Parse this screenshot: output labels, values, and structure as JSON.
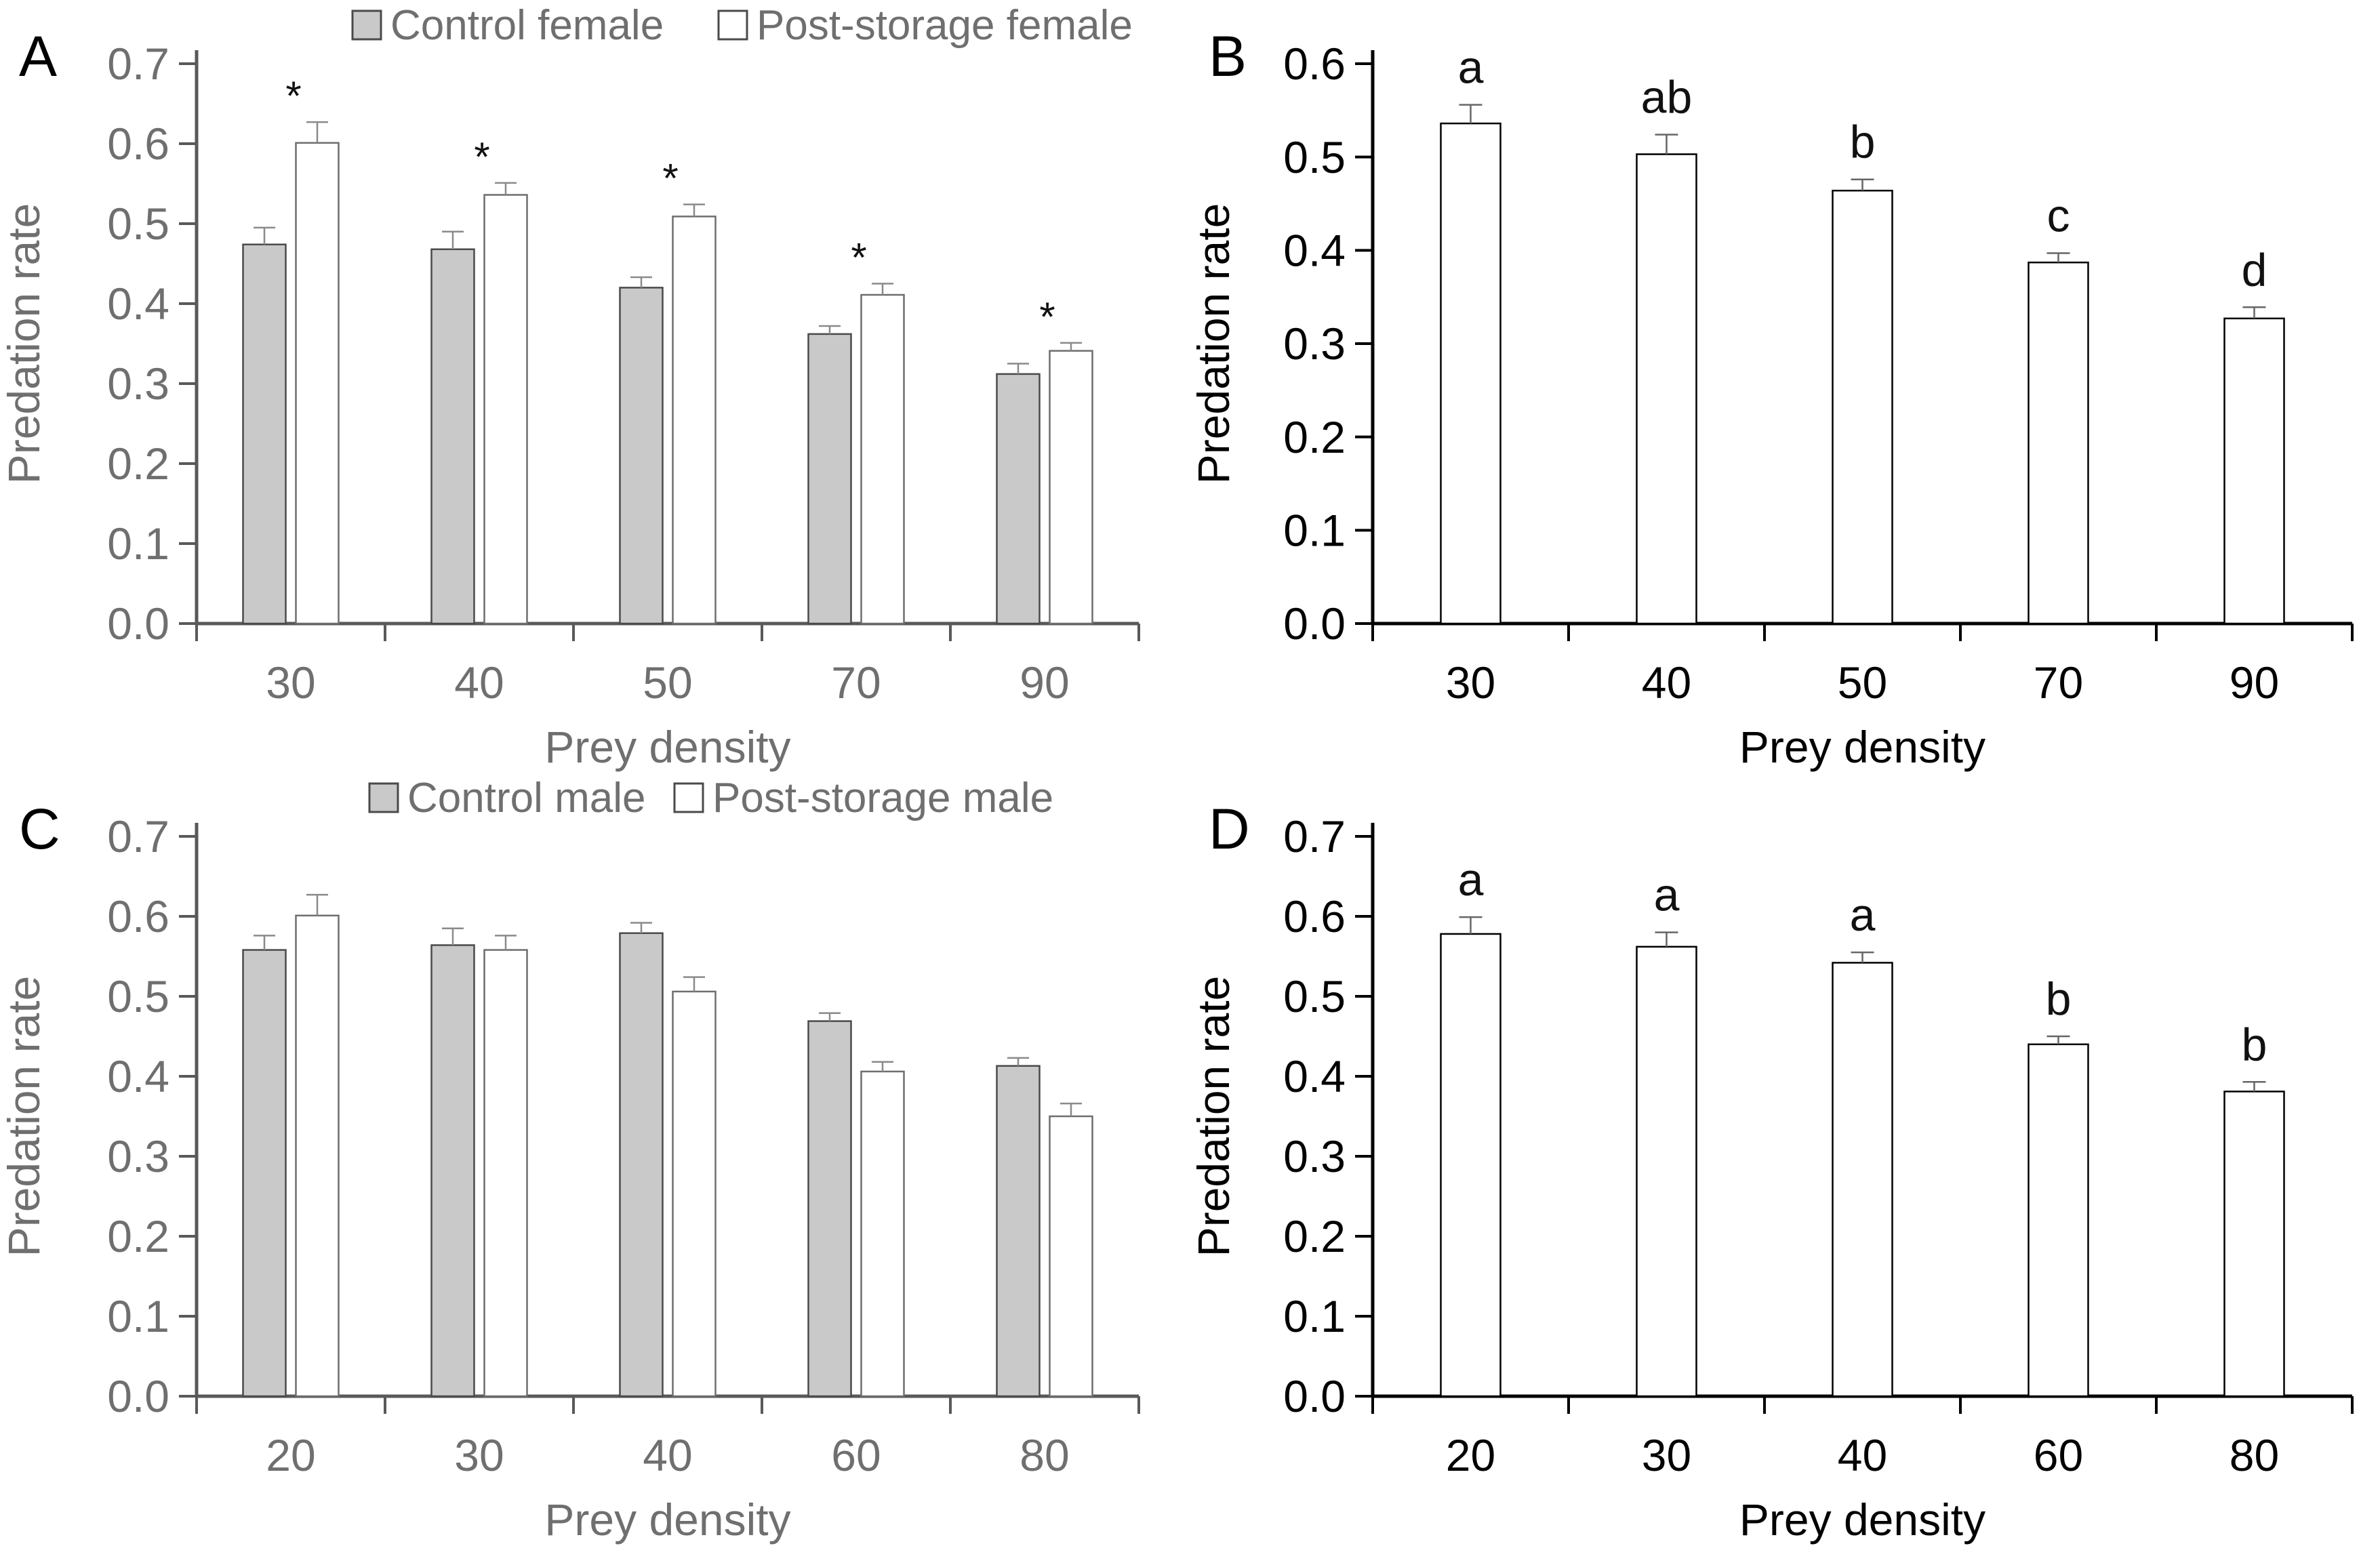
{
  "figure": {
    "background": "#ffffff",
    "xlabel": "Prey density",
    "ylabel": "Predation rate"
  },
  "colors": {
    "gray_bar_fill": "#c9c9c9",
    "gray_bar_stroke": "#4a4a4a",
    "white_bar_fill": "#ffffff",
    "white_bar_stroke_graypanels": "#6e6e6e",
    "white_bar_stroke_blackpanels": "#000000",
    "text_gray": "#6f6f6f",
    "text_black": "#000000",
    "axis_gray": "#595959",
    "axis_black": "#000000",
    "error_bar_gray": "#8a8a8a",
    "error_bar_dark": "#666666",
    "sig_text": "#111111"
  },
  "chart_data": [
    {
      "panel": "A",
      "type": "bar",
      "style": "gray",
      "xlabel": "Prey density",
      "ylabel": "Predation rate",
      "ylim": [
        0.0,
        0.7
      ],
      "yticks": [
        "0.0",
        "0.1",
        "0.2",
        "0.3",
        "0.4",
        "0.5",
        "0.6",
        "0.7"
      ],
      "categories": [
        "30",
        "40",
        "50",
        "70",
        "90"
      ],
      "legend": [
        {
          "label": "Control female",
          "fill": "gray"
        },
        {
          "label": "Post-storage female",
          "fill": "white"
        }
      ],
      "legend_x": [
        520,
        1060
      ],
      "series": [
        {
          "name": "Control female",
          "fill": "gray",
          "values": [
            0.474,
            0.468,
            0.42,
            0.362,
            0.312
          ],
          "errors": [
            0.021,
            0.022,
            0.013,
            0.01,
            0.013
          ]
        },
        {
          "name": "Post-storage female",
          "fill": "white",
          "values": [
            0.601,
            0.536,
            0.509,
            0.411,
            0.341
          ],
          "errors": [
            0.026,
            0.015,
            0.015,
            0.014,
            0.01
          ]
        }
      ],
      "sig_marker": "*",
      "asterisk_groups": [
        0,
        1,
        2,
        3,
        4
      ]
    },
    {
      "panel": "B",
      "type": "bar",
      "style": "black",
      "xlabel": "Prey density",
      "ylabel": "Predation rate",
      "ylim": [
        0.0,
        0.6
      ],
      "yticks": [
        "0.0",
        "0.1",
        "0.2",
        "0.3",
        "0.4",
        "0.5",
        "0.6"
      ],
      "categories": [
        "30",
        "40",
        "50",
        "70",
        "90"
      ],
      "series": [
        {
          "name": "Post-storage female",
          "fill": "white",
          "values": [
            0.536,
            0.503,
            0.464,
            0.387,
            0.327
          ],
          "errors": [
            0.02,
            0.021,
            0.012,
            0.01,
            0.012
          ]
        }
      ],
      "letters": [
        "a",
        "ab",
        "b",
        "c",
        "d"
      ]
    },
    {
      "panel": "C",
      "type": "bar",
      "style": "gray",
      "xlabel": "Prey density",
      "ylabel": "Predation rate",
      "ylim": [
        0.0,
        0.7
      ],
      "yticks": [
        "0.0",
        "0.1",
        "0.2",
        "0.3",
        "0.4",
        "0.5",
        "0.6",
        "0.7"
      ],
      "categories": [
        "20",
        "30",
        "40",
        "60",
        "80"
      ],
      "legend": [
        {
          "label": "Control male",
          "fill": "gray"
        },
        {
          "label": "Post-storage male",
          "fill": "white"
        }
      ],
      "legend_x": [
        545,
        995
      ],
      "series": [
        {
          "name": "Control male",
          "fill": "gray",
          "values": [
            0.558,
            0.564,
            0.579,
            0.469,
            0.413
          ],
          "errors": [
            0.018,
            0.021,
            0.013,
            0.01,
            0.01
          ]
        },
        {
          "name": "Post-storage male",
          "fill": "white",
          "values": [
            0.601,
            0.558,
            0.506,
            0.406,
            0.35
          ],
          "errors": [
            0.026,
            0.018,
            0.018,
            0.012,
            0.016
          ]
        }
      ]
    },
    {
      "panel": "D",
      "type": "bar",
      "style": "black",
      "xlabel": "Prey density",
      "ylabel": "Predation rate",
      "ylim": [
        0.0,
        0.7
      ],
      "yticks": [
        "0.0",
        "0.1",
        "0.2",
        "0.3",
        "0.4",
        "0.5",
        "0.6",
        "0.7"
      ],
      "categories": [
        "20",
        "30",
        "40",
        "60",
        "80"
      ],
      "series": [
        {
          "name": "Post-storage male",
          "fill": "white",
          "values": [
            0.578,
            0.562,
            0.542,
            0.44,
            0.381
          ],
          "errors": [
            0.021,
            0.018,
            0.013,
            0.01,
            0.012
          ]
        }
      ],
      "letters": [
        "a",
        "a",
        "a",
        "b",
        "b"
      ]
    }
  ]
}
